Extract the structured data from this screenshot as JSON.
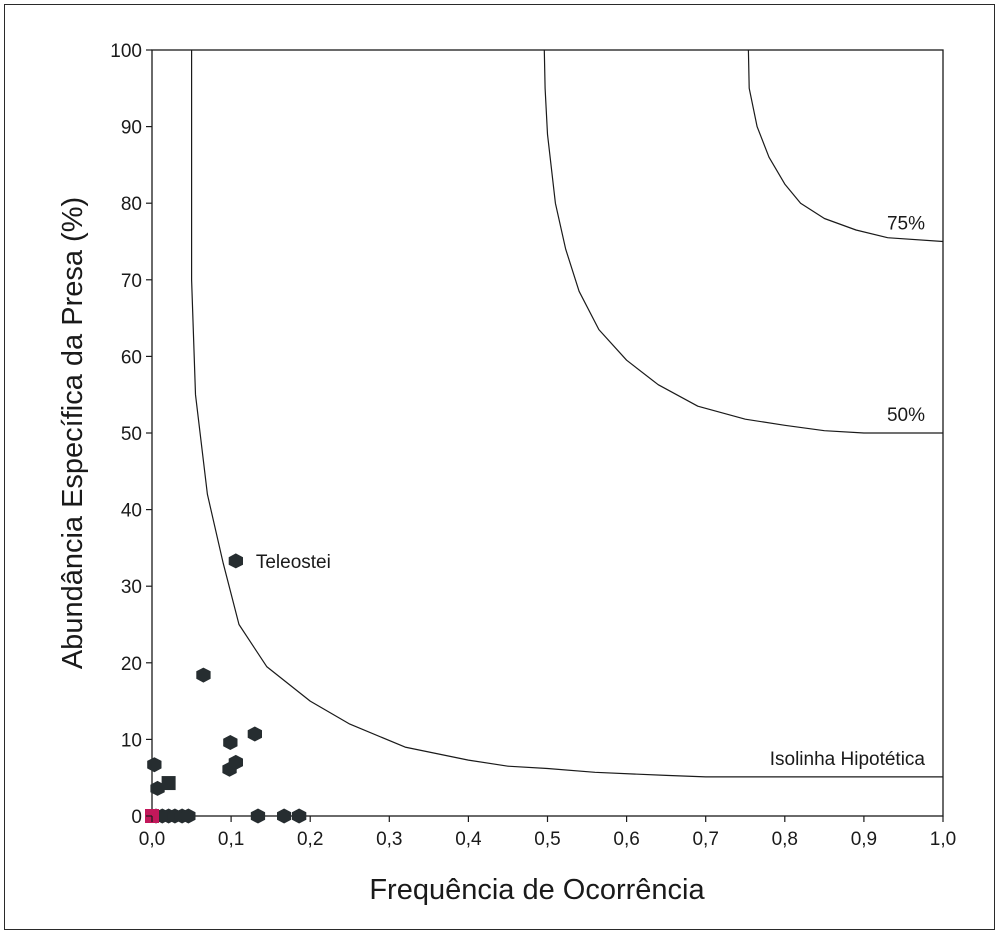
{
  "chart_data": {
    "type": "scatter",
    "xlabel": "Frequência de Ocorrência",
    "ylabel": "Abundância Específica da Presa (%)",
    "xlim": [
      0,
      1.0
    ],
    "ylim": [
      0,
      100
    ],
    "x_ticks": [
      "0,0",
      "0,1",
      "0,2",
      "0,3",
      "0,4",
      "0,5",
      "0,6",
      "0,7",
      "0,8",
      "0,9",
      "1,0"
    ],
    "y_ticks": [
      "0",
      "10",
      "20",
      "30",
      "40",
      "50",
      "60",
      "70",
      "80",
      "90",
      "100"
    ],
    "grid": false,
    "points": [
      {
        "x": 0.003,
        "y": 6.7,
        "shape": "hexagon"
      },
      {
        "x": 0.007,
        "y": 3.6,
        "shape": "hexagon"
      },
      {
        "x": 0.021,
        "y": 4.3,
        "shape": "square"
      },
      {
        "x": 0.065,
        "y": 18.4,
        "shape": "hexagon"
      },
      {
        "x": 0.106,
        "y": 33.3,
        "shape": "hexagon",
        "label": "Teleostei"
      },
      {
        "x": 0.099,
        "y": 9.6,
        "shape": "hexagon"
      },
      {
        "x": 0.13,
        "y": 10.7,
        "shape": "hexagon"
      },
      {
        "x": 0.098,
        "y": 6.1,
        "shape": "hexagon"
      },
      {
        "x": 0.106,
        "y": 7.0,
        "shape": "hexagon"
      },
      {
        "x": 0.005,
        "y": 0,
        "shape": "hexagon"
      },
      {
        "x": 0.013,
        "y": 0,
        "shape": "hexagon"
      },
      {
        "x": 0.021,
        "y": 0,
        "shape": "hexagon"
      },
      {
        "x": 0.029,
        "y": 0,
        "shape": "hexagon"
      },
      {
        "x": 0.038,
        "y": 0,
        "shape": "hexagon"
      },
      {
        "x": 0.046,
        "y": 0,
        "shape": "hexagon"
      },
      {
        "x": 0.134,
        "y": 0,
        "shape": "hexagon"
      },
      {
        "x": 0.167,
        "y": 0,
        "shape": "hexagon"
      },
      {
        "x": 0.186,
        "y": 0,
        "shape": "hexagon"
      },
      {
        "x": 0.0,
        "y": 0,
        "shape": "square",
        "color": "#c2185b"
      }
    ],
    "isolines": [
      {
        "label": "Isolinha Hipotética",
        "points": [
          [
            0.05,
            100
          ],
          [
            0.05,
            70
          ],
          [
            0.055,
            55
          ],
          [
            0.07,
            42
          ],
          [
            0.09,
            33
          ],
          [
            0.11,
            25
          ],
          [
            0.145,
            19.5
          ],
          [
            0.2,
            15
          ],
          [
            0.25,
            12
          ],
          [
            0.32,
            9
          ],
          [
            0.4,
            7.3
          ],
          [
            0.45,
            6.5
          ],
          [
            0.5,
            6.2
          ],
          [
            0.56,
            5.7
          ],
          [
            0.65,
            5.3
          ],
          [
            0.7,
            5.1
          ],
          [
            1.0,
            5.1
          ]
        ]
      },
      {
        "label": "50%",
        "points": [
          [
            0.496,
            100
          ],
          [
            0.497,
            95
          ],
          [
            0.5,
            89
          ],
          [
            0.51,
            80
          ],
          [
            0.523,
            74
          ],
          [
            0.54,
            68.5
          ],
          [
            0.565,
            63.5
          ],
          [
            0.6,
            59.5
          ],
          [
            0.64,
            56.3
          ],
          [
            0.69,
            53.5
          ],
          [
            0.75,
            51.8
          ],
          [
            0.8,
            51
          ],
          [
            0.85,
            50.3
          ],
          [
            0.9,
            50
          ],
          [
            1.0,
            50
          ]
        ]
      },
      {
        "label": "75%",
        "points": [
          [
            0.754,
            100
          ],
          [
            0.755,
            95
          ],
          [
            0.765,
            90
          ],
          [
            0.78,
            86
          ],
          [
            0.8,
            82.5
          ],
          [
            0.82,
            80
          ],
          [
            0.85,
            78
          ],
          [
            0.89,
            76.5
          ],
          [
            0.93,
            75.5
          ],
          [
            1.0,
            75
          ]
        ]
      }
    ]
  }
}
